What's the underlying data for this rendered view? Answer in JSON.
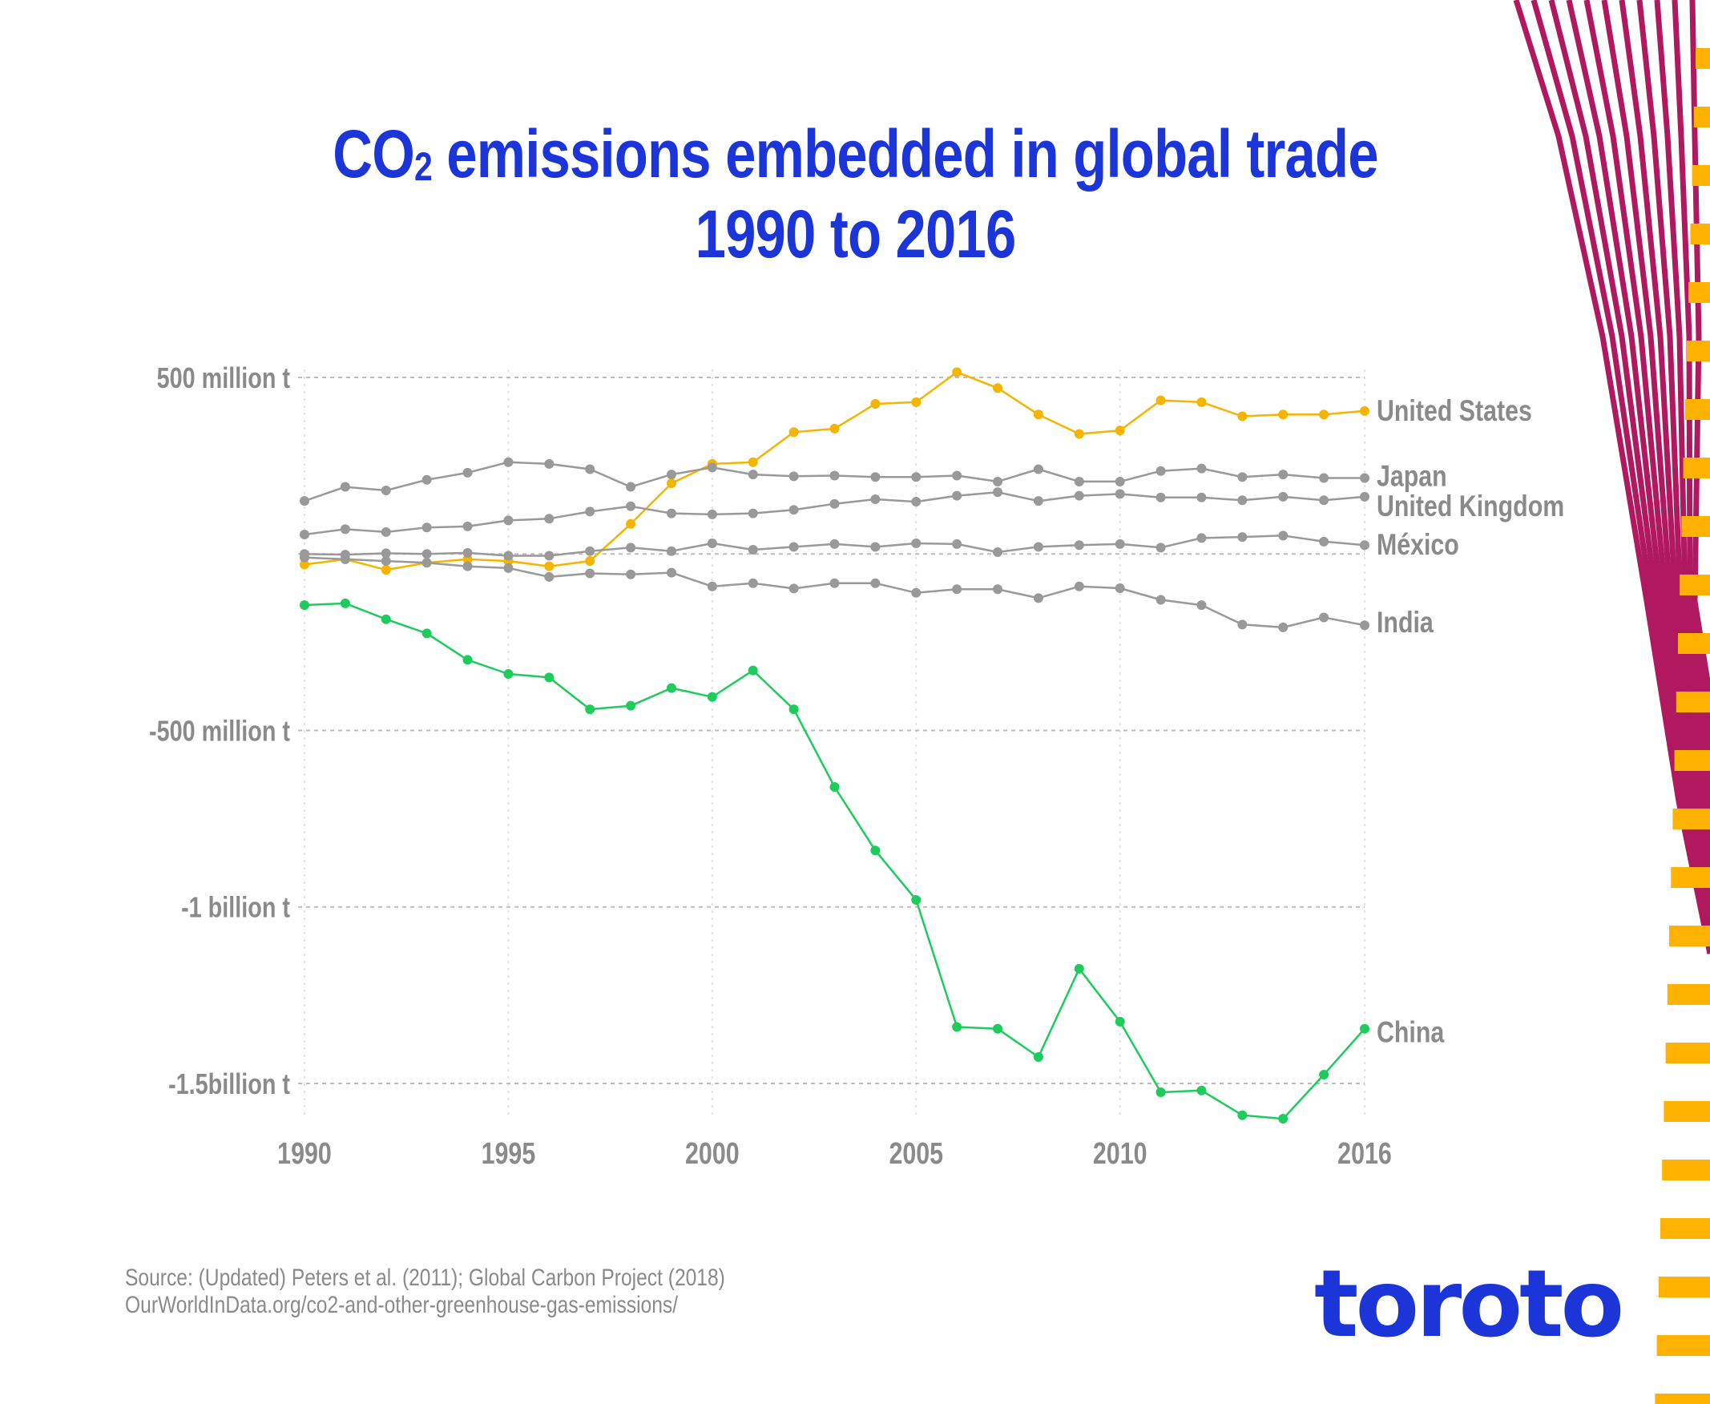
{
  "title": {
    "prefix": "CO",
    "subscript": "2",
    "rest": " emissions embedded in global trade",
    "line2": "1990 to 2016"
  },
  "source": {
    "line1": "Source: (Updated) Peters et al. (2011); Global Carbon Project (2018)",
    "line2": "OurWorldInData.org/co2-and-other-greenhouse-gas-emissions/"
  },
  "logo": "toroto",
  "colors": {
    "title": "#1c35d8",
    "axis_text": "#8a8a8a",
    "grid": "#bdbdbd",
    "grey_series": "#999999",
    "united_states": "#f5b400",
    "china": "#1dcc5c",
    "decor_stripes": "#b0185f",
    "decor_dashes": "#ffb300"
  },
  "chart_data": {
    "type": "line",
    "title": "CO2 emissions embedded in global trade 1990 to 2016",
    "xlabel": "",
    "ylabel": "",
    "xlim": [
      1990,
      2016
    ],
    "ylim": [
      -1500,
      500
    ],
    "x_ticks": [
      1990,
      1995,
      2000,
      2005,
      2010,
      2016
    ],
    "x_tick_labels": [
      "1990",
      "1995",
      "2000",
      "2005",
      "2010",
      "2016"
    ],
    "y_ticks": [
      500,
      0,
      -500,
      -1000,
      -1500
    ],
    "y_tick_labels": [
      "500 million t",
      "",
      "-500 million t",
      "-1 billion t",
      "-1.5billion t"
    ],
    "units": "million tonnes CO2",
    "x": [
      1990,
      1991,
      1992,
      1993,
      1994,
      1995,
      1996,
      1997,
      1998,
      1999,
      2000,
      2001,
      2002,
      2003,
      2004,
      2005,
      2006,
      2007,
      2008,
      2009,
      2010,
      2011,
      2012,
      2013,
      2014,
      2015,
      2016
    ],
    "series": [
      {
        "name": "United States",
        "color": "#f5b400",
        "values": [
          -30,
          -15,
          -45,
          -25,
          -15,
          -20,
          -35,
          -20,
          85,
          200,
          255,
          260,
          345,
          355,
          425,
          430,
          515,
          470,
          395,
          340,
          350,
          435,
          430,
          390,
          395,
          395,
          405
        ]
      },
      {
        "name": "Japan",
        "color": "#999999",
        "values": [
          150,
          190,
          180,
          210,
          230,
          260,
          255,
          240,
          190,
          225,
          245,
          225,
          220,
          222,
          218,
          218,
          222,
          205,
          240,
          205,
          205,
          235,
          242,
          218,
          225,
          215,
          215
        ]
      },
      {
        "name": "United Kingdom",
        "color": "#999999",
        "values": [
          55,
          70,
          62,
          75,
          78,
          95,
          100,
          120,
          135,
          115,
          112,
          115,
          125,
          142,
          155,
          148,
          165,
          175,
          150,
          165,
          170,
          160,
          160,
          152,
          162,
          152,
          162
        ]
      },
      {
        "name": "México",
        "color": "#999999",
        "values": [
          0,
          -2,
          2,
          0,
          3,
          -5,
          -5,
          8,
          18,
          8,
          30,
          12,
          20,
          28,
          20,
          30,
          28,
          5,
          20,
          25,
          28,
          18,
          45,
          48,
          52,
          35,
          25
        ]
      },
      {
        "name": "India",
        "color": "#999999",
        "values": [
          -10,
          -15,
          -20,
          -25,
          -35,
          -40,
          -65,
          -55,
          -58,
          -53,
          -92,
          -83,
          -98,
          -83,
          -83,
          -110,
          -100,
          -100,
          -125,
          -92,
          -97,
          -130,
          -145,
          -200,
          -208,
          -180,
          -202
        ]
      },
      {
        "name": "China",
        "color": "#1dcc5c",
        "values": [
          -145,
          -140,
          -185,
          -225,
          -300,
          -340,
          -350,
          -440,
          -430,
          -380,
          -405,
          -330,
          -440,
          -660,
          -840,
          -980,
          -1340,
          -1345,
          -1425,
          -1175,
          -1325,
          -1525,
          -1520,
          -1590,
          -1600,
          -1475,
          -1345
        ]
      }
    ]
  }
}
